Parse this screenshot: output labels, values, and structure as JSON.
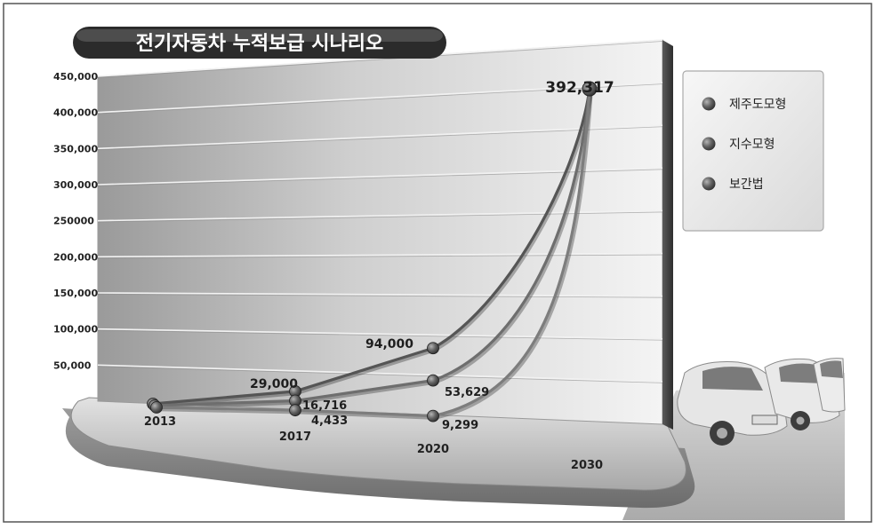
{
  "colors": {
    "title_bg": "#3a3a3a",
    "title_text": "#ffffff",
    "line_jeju": "#555555",
    "line_exp": "#6e6e6e",
    "line_interp": "#7d7d7d",
    "marker": "#4a4a4a"
  },
  "legend": {
    "items": [
      "제주도모형",
      "지수모형",
      "보간법"
    ]
  },
  "chart_data": {
    "type": "line",
    "title": "전기자동차 누적보급 시나리오",
    "xlabel": "",
    "ylabel": "",
    "categories": [
      "2013",
      "2017",
      "2020",
      "2030"
    ],
    "y_tick_labels": [
      "450,000",
      "400,000",
      "350,000",
      "300,000",
      "250000",
      "200,000",
      "150,000",
      "100,000",
      "50,000"
    ],
    "y_ticks": [
      450000,
      400000,
      350000,
      300000,
      250000,
      200000,
      150000,
      100000,
      50000
    ],
    "ylim": [
      0,
      450000
    ],
    "grid": true,
    "legend_position": "right",
    "series": [
      {
        "name": "제주도모형",
        "values": [
          0,
          29000,
          94000,
          392317
        ]
      },
      {
        "name": "지수모형",
        "values": [
          0,
          16716,
          53629,
          392317
        ]
      },
      {
        "name": "보간법",
        "values": [
          0,
          4433,
          9299,
          392317
        ]
      }
    ],
    "data_labels": [
      {
        "category": "2030",
        "text": "392,317"
      },
      {
        "category": "2020",
        "text": "94,000"
      },
      {
        "category": "2020",
        "text": "53,629"
      },
      {
        "category": "2020",
        "text": "9,299"
      },
      {
        "category": "2017",
        "text": "29,000"
      },
      {
        "category": "2017",
        "text": "16,716"
      },
      {
        "category": "2017",
        "text": "4,433"
      }
    ]
  }
}
